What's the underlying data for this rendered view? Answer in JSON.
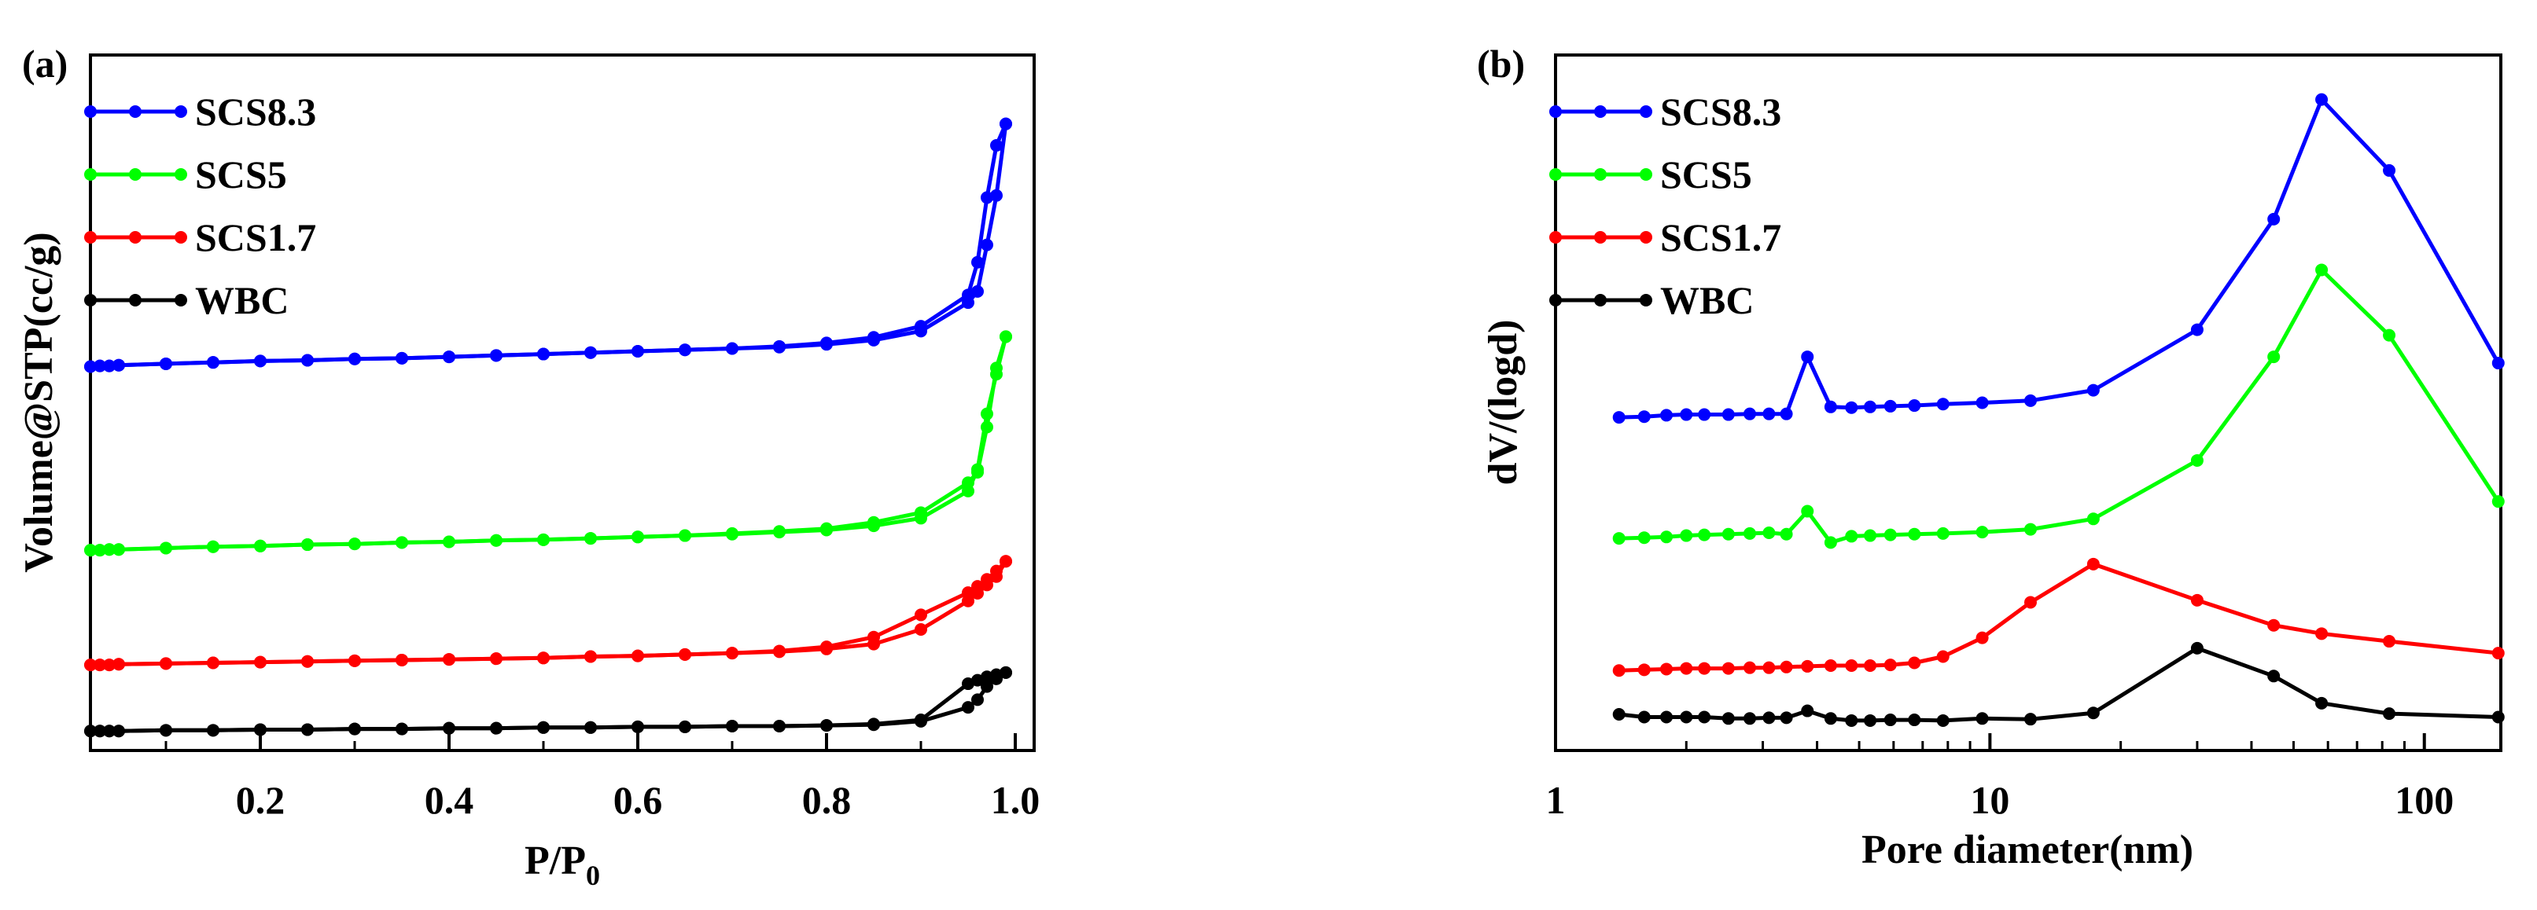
{
  "chart_data": [
    {
      "type": "line",
      "panel_label": "(a)",
      "title": "",
      "xlabel": "P/P",
      "xlabel_subscript": "0",
      "ylabel": "Volume@STP(cc/g)",
      "xlim": [
        0.02,
        1.02
      ],
      "ylim": [
        0,
        100
      ],
      "x_scale": "linear",
      "xticks": [
        0.2,
        0.4,
        0.6,
        0.8,
        1.0
      ],
      "xtick_labels": [
        "0.2",
        "0.4",
        "0.6",
        "0.8",
        "1.0"
      ],
      "yticks": [],
      "grid": false,
      "legend_position": "top-left",
      "series": [
        {
          "name": "SCS8.3",
          "color": "#0000ff",
          "adsorption": {
            "x": [
              0.02,
              0.03,
              0.04,
              0.05,
              0.1,
              0.15,
              0.2,
              0.25,
              0.3,
              0.35,
              0.4,
              0.45,
              0.5,
              0.55,
              0.6,
              0.65,
              0.7,
              0.75,
              0.8,
              0.85,
              0.9,
              0.95,
              0.96,
              0.97,
              0.98,
              0.99
            ],
            "y": [
              55.2,
              55.3,
              55.3,
              55.4,
              55.6,
              55.8,
              56.0,
              56.1,
              56.3,
              56.4,
              56.6,
              56.8,
              57.0,
              57.2,
              57.4,
              57.6,
              57.8,
              58.0,
              58.4,
              59.0,
              60.3,
              64.4,
              66.0,
              72.7,
              79.8,
              90.1
            ]
          },
          "desorption": {
            "x": [
              0.99,
              0.98,
              0.97,
              0.96,
              0.95,
              0.9,
              0.85,
              0.8,
              0.75,
              0.7,
              0.65,
              0.6,
              0.55,
              0.5,
              0.45,
              0.4,
              0.35,
              0.3,
              0.25,
              0.2,
              0.15,
              0.1,
              0.05,
              0.04,
              0.03,
              0.02
            ],
            "y": [
              90.1,
              87.0,
              79.5,
              70.2,
              65.5,
              61.0,
              59.4,
              58.6,
              58.1,
              57.8,
              57.6,
              57.4,
              57.2,
              57.0,
              56.8,
              56.6,
              56.4,
              56.3,
              56.1,
              56.0,
              55.8,
              55.6,
              55.4,
              55.3,
              55.3,
              55.2
            ]
          }
        },
        {
          "name": "SCS5",
          "color": "#00ff00",
          "adsorption": {
            "x": [
              0.02,
              0.03,
              0.04,
              0.05,
              0.1,
              0.15,
              0.2,
              0.25,
              0.3,
              0.35,
              0.4,
              0.45,
              0.5,
              0.55,
              0.6,
              0.65,
              0.7,
              0.75,
              0.8,
              0.85,
              0.9,
              0.95,
              0.96,
              0.97,
              0.98,
              0.99
            ],
            "y": [
              28.8,
              28.8,
              28.9,
              28.9,
              29.1,
              29.3,
              29.4,
              29.6,
              29.7,
              29.9,
              30.0,
              30.2,
              30.3,
              30.5,
              30.7,
              30.9,
              31.1,
              31.4,
              31.7,
              32.3,
              33.4,
              37.3,
              40.4,
              48.4,
              54.1,
              59.5
            ]
          },
          "desorption": {
            "x": [
              0.99,
              0.98,
              0.97,
              0.96,
              0.95,
              0.9,
              0.85,
              0.8,
              0.75,
              0.7,
              0.65,
              0.6,
              0.55,
              0.5,
              0.45,
              0.4,
              0.35,
              0.3,
              0.25,
              0.2,
              0.15,
              0.1,
              0.05,
              0.04,
              0.03,
              0.02
            ],
            "y": [
              59.5,
              55.0,
              46.5,
              40.0,
              38.5,
              34.2,
              32.8,
              31.9,
              31.5,
              31.2,
              30.9,
              30.7,
              30.5,
              30.3,
              30.2,
              30.0,
              29.9,
              29.7,
              29.6,
              29.4,
              29.3,
              29.1,
              28.9,
              28.9,
              28.8,
              28.8
            ]
          }
        },
        {
          "name": "SCS1.7",
          "color": "#ff0000",
          "adsorption": {
            "x": [
              0.02,
              0.03,
              0.04,
              0.05,
              0.1,
              0.15,
              0.2,
              0.25,
              0.3,
              0.35,
              0.4,
              0.45,
              0.5,
              0.55,
              0.6,
              0.65,
              0.7,
              0.75,
              0.8,
              0.85,
              0.9,
              0.95,
              0.96,
              0.97,
              0.98,
              0.99
            ],
            "y": [
              12.3,
              12.3,
              12.3,
              12.4,
              12.5,
              12.6,
              12.7,
              12.8,
              12.9,
              13.0,
              13.1,
              13.2,
              13.3,
              13.5,
              13.6,
              13.8,
              14.0,
              14.2,
              14.6,
              15.3,
              17.4,
              21.5,
              22.6,
              23.8,
              25.0,
              27.2
            ]
          },
          "desorption": {
            "x": [
              0.99,
              0.98,
              0.97,
              0.96,
              0.95,
              0.9,
              0.85,
              0.8,
              0.75,
              0.7,
              0.65,
              0.6,
              0.55,
              0.5,
              0.45,
              0.4,
              0.35,
              0.3,
              0.25,
              0.2,
              0.15,
              0.1,
              0.05,
              0.04,
              0.03,
              0.02
            ],
            "y": [
              27.2,
              25.8,
              24.6,
              23.6,
              22.7,
              19.5,
              16.3,
              14.9,
              14.3,
              14.0,
              13.8,
              13.6,
              13.5,
              13.3,
              13.2,
              13.1,
              13.0,
              12.9,
              12.8,
              12.7,
              12.6,
              12.5,
              12.4,
              12.3,
              12.3,
              12.3
            ]
          }
        },
        {
          "name": "WBC",
          "color": "#000000",
          "adsorption": {
            "x": [
              0.02,
              0.03,
              0.04,
              0.05,
              0.1,
              0.15,
              0.2,
              0.25,
              0.3,
              0.35,
              0.4,
              0.45,
              0.5,
              0.55,
              0.6,
              0.65,
              0.7,
              0.75,
              0.8,
              0.85,
              0.9,
              0.95,
              0.96,
              0.97,
              0.98,
              0.99
            ],
            "y": [
              2.8,
              2.8,
              2.8,
              2.8,
              2.9,
              2.9,
              3.0,
              3.0,
              3.1,
              3.1,
              3.2,
              3.2,
              3.3,
              3.3,
              3.4,
              3.4,
              3.5,
              3.5,
              3.6,
              3.7,
              4.2,
              6.2,
              7.3,
              9.2,
              10.3,
              11.2
            ]
          },
          "desorption": {
            "x": [
              0.99,
              0.98,
              0.97,
              0.96,
              0.95,
              0.9,
              0.85,
              0.8,
              0.75,
              0.7,
              0.65,
              0.6,
              0.55,
              0.5,
              0.45,
              0.4,
              0.35,
              0.3,
              0.25,
              0.2,
              0.15,
              0.1,
              0.05,
              0.04,
              0.03,
              0.02
            ],
            "y": [
              11.2,
              10.9,
              10.6,
              10.1,
              9.6,
              4.4,
              3.8,
              3.6,
              3.5,
              3.5,
              3.4,
              3.4,
              3.3,
              3.3,
              3.2,
              3.2,
              3.1,
              3.1,
              3.0,
              3.0,
              2.9,
              2.9,
              2.8,
              2.8,
              2.8,
              2.8
            ]
          }
        }
      ]
    },
    {
      "type": "line",
      "panel_label": "(b)",
      "title": "",
      "xlabel": "Pore diameter(nm)",
      "ylabel": "dV/(logd)",
      "xlim": [
        1,
        150
      ],
      "ylim": [
        0,
        100
      ],
      "x_scale": "log",
      "xticks": [
        1,
        10,
        100
      ],
      "xtick_labels": [
        "1",
        "10",
        "100"
      ],
      "yticks": [],
      "grid": false,
      "legend_position": "top-left",
      "x": [
        1.4,
        1.6,
        1.8,
        2.0,
        2.2,
        2.5,
        2.8,
        3.1,
        3.4,
        3.8,
        4.3,
        4.8,
        5.3,
        5.9,
        6.7,
        7.8,
        9.6,
        12.4,
        17.3,
        30.0,
        45.0,
        58.0,
        83.0,
        148.0
      ],
      "series": [
        {
          "name": "SCS8.3",
          "color": "#0000ff",
          "values": [
            47.9,
            48.0,
            48.2,
            48.3,
            48.3,
            48.3,
            48.4,
            48.4,
            48.4,
            56.6,
            49.4,
            49.3,
            49.4,
            49.5,
            49.6,
            49.8,
            50.0,
            50.3,
            51.8,
            60.5,
            76.4,
            93.6,
            83.4,
            55.7
          ]
        },
        {
          "name": "SCS5",
          "color": "#00ff00",
          "values": [
            30.5,
            30.6,
            30.7,
            30.9,
            31.0,
            31.1,
            31.2,
            31.3,
            31.1,
            34.4,
            29.9,
            30.8,
            30.9,
            31.0,
            31.1,
            31.2,
            31.4,
            31.8,
            33.3,
            41.7,
            56.6,
            69.1,
            59.7,
            35.8
          ]
        },
        {
          "name": "SCS1.7",
          "color": "#ff0000",
          "values": [
            11.5,
            11.6,
            11.7,
            11.8,
            11.8,
            11.8,
            11.9,
            11.9,
            12.0,
            12.1,
            12.2,
            12.2,
            12.2,
            12.3,
            12.6,
            13.5,
            16.2,
            21.3,
            26.8,
            21.6,
            18.0,
            16.8,
            15.7,
            14.0
          ]
        },
        {
          "name": "WBC",
          "color": "#000000",
          "values": [
            5.2,
            4.8,
            4.8,
            4.8,
            4.8,
            4.6,
            4.6,
            4.7,
            4.7,
            5.7,
            4.6,
            4.3,
            4.3,
            4.4,
            4.4,
            4.3,
            4.6,
            4.5,
            5.4,
            14.7,
            10.7,
            6.8,
            5.3,
            4.8
          ]
        }
      ]
    }
  ]
}
